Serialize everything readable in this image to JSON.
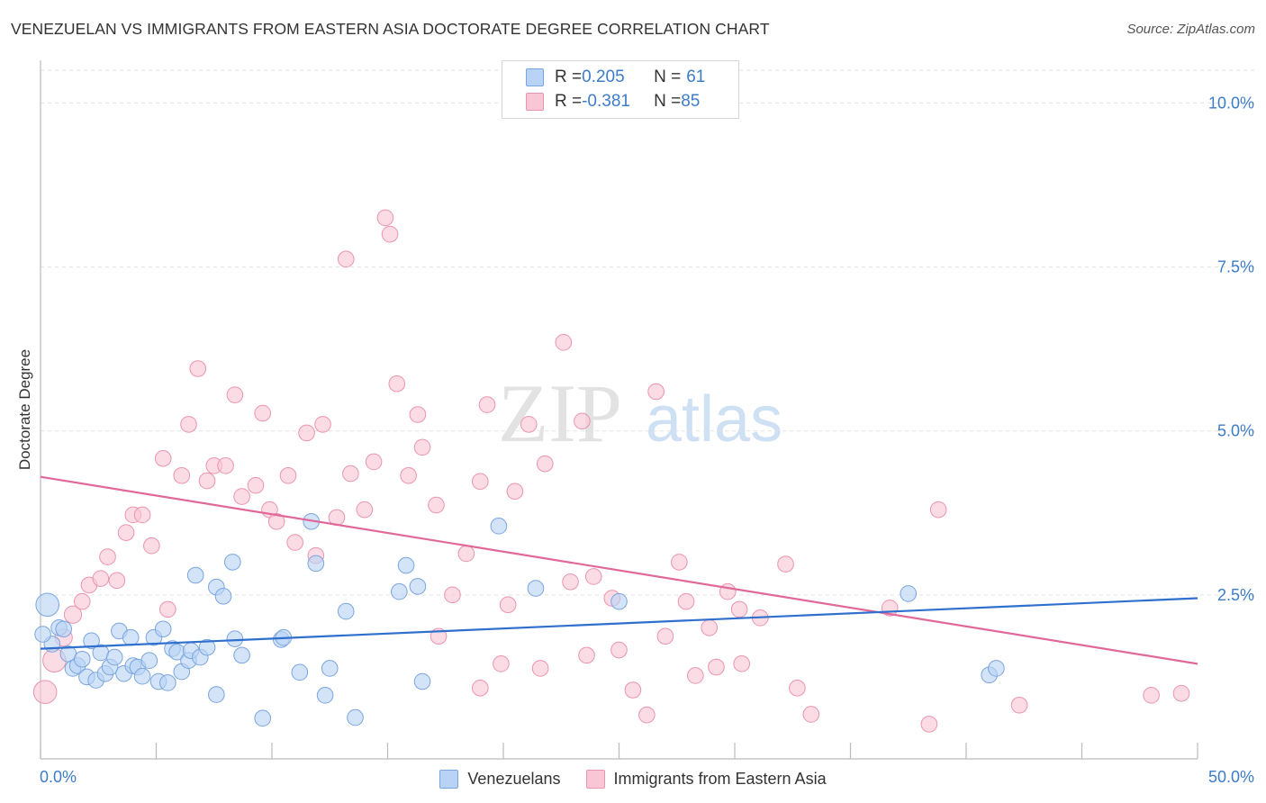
{
  "title": "VENEZUELAN VS IMMIGRANTS FROM EASTERN ASIA DOCTORATE DEGREE CORRELATION CHART",
  "source": "Source: ZipAtlas.com",
  "watermark": {
    "zip": "ZIP",
    "atlas": "atlas"
  },
  "legend": {
    "rows": [
      {
        "r_label": "R = ",
        "r_value": "0.205",
        "n_label": "N = ",
        "n_value": "61"
      },
      {
        "r_label": "R = ",
        "r_value": "-0.381",
        "n_label": "N = ",
        "n_value": "85"
      }
    ]
  },
  "colors": {
    "blue_fill": "#b8d3f5",
    "blue_stroke": "#7aa5de",
    "blue_line": "#2f6fce",
    "pink_fill": "#f8c6d5",
    "pink_stroke": "#eb94b0",
    "pink_line": "#e0689a",
    "tick_label": "#3d7cc9",
    "grid": "#e2e2e2"
  },
  "chart_data": {
    "type": "scatter",
    "title": "VENEZUELAN VS IMMIGRANTS FROM EASTERN ASIA DOCTORATE DEGREE CORRELATION CHART",
    "xlabel": "",
    "ylabel": "Doctorate Degree",
    "xlim": [
      0,
      50
    ],
    "ylim": [
      0,
      10.5
    ],
    "x_tick_labels": [
      "0.0%",
      "50.0%"
    ],
    "y_ticks": [
      2.5,
      5.0,
      7.5,
      10.0
    ],
    "y_tick_labels": [
      "2.5%",
      "5.0%",
      "7.5%",
      "10.0%"
    ],
    "grid": "horizontal dashed",
    "legend_position": "top-center and bottom",
    "series": [
      {
        "name": "Venezuelans",
        "r": 0.205,
        "n": 61,
        "trend": {
          "x": [
            0,
            50
          ],
          "y": [
            1.68,
            2.45
          ]
        },
        "points": [
          {
            "x": 0.3,
            "y": 2.35,
            "s": 16
          },
          {
            "x": 0.5,
            "y": 1.75,
            "s": 11
          },
          {
            "x": 0.8,
            "y": 2.0,
            "s": 11
          },
          {
            "x": 1.0,
            "y": 1.98,
            "s": 11
          },
          {
            "x": 1.2,
            "y": 1.6,
            "s": 11
          },
          {
            "x": 1.4,
            "y": 1.38,
            "s": 11
          },
          {
            "x": 1.6,
            "y": 1.42,
            "s": 11
          },
          {
            "x": 1.8,
            "y": 1.52,
            "s": 11
          },
          {
            "x": 2.0,
            "y": 1.25,
            "s": 11
          },
          {
            "x": 2.2,
            "y": 1.8,
            "s": 11
          },
          {
            "x": 2.4,
            "y": 1.2,
            "s": 11
          },
          {
            "x": 2.6,
            "y": 1.62,
            "s": 11
          },
          {
            "x": 2.8,
            "y": 1.3,
            "s": 11
          },
          {
            "x": 3.0,
            "y": 1.4,
            "s": 11
          },
          {
            "x": 3.2,
            "y": 1.55,
            "s": 11
          },
          {
            "x": 3.4,
            "y": 1.95,
            "s": 11
          },
          {
            "x": 3.6,
            "y": 1.3,
            "s": 11
          },
          {
            "x": 3.9,
            "y": 1.85,
            "s": 11
          },
          {
            "x": 4.0,
            "y": 1.42,
            "s": 11
          },
          {
            "x": 4.2,
            "y": 1.4,
            "s": 11
          },
          {
            "x": 4.4,
            "y": 1.26,
            "s": 11
          },
          {
            "x": 4.7,
            "y": 1.5,
            "s": 11
          },
          {
            "x": 4.9,
            "y": 1.85,
            "s": 11
          },
          {
            "x": 5.1,
            "y": 1.18,
            "s": 11
          },
          {
            "x": 5.3,
            "y": 1.98,
            "s": 11
          },
          {
            "x": 5.5,
            "y": 1.16,
            "s": 11
          },
          {
            "x": 5.7,
            "y": 1.68,
            "s": 11
          },
          {
            "x": 5.9,
            "y": 1.63,
            "s": 11
          },
          {
            "x": 6.1,
            "y": 1.33,
            "s": 11
          },
          {
            "x": 6.4,
            "y": 1.5,
            "s": 11
          },
          {
            "x": 6.5,
            "y": 1.65,
            "s": 11
          },
          {
            "x": 6.7,
            "y": 2.8,
            "s": 11
          },
          {
            "x": 6.9,
            "y": 1.55,
            "s": 11
          },
          {
            "x": 7.2,
            "y": 1.7,
            "s": 11
          },
          {
            "x": 7.6,
            "y": 2.62,
            "s": 11
          },
          {
            "x": 7.6,
            "y": 0.98,
            "s": 11
          },
          {
            "x": 7.9,
            "y": 2.48,
            "s": 11
          },
          {
            "x": 8.3,
            "y": 3.0,
            "s": 11
          },
          {
            "x": 8.4,
            "y": 1.83,
            "s": 11
          },
          {
            "x": 8.7,
            "y": 1.58,
            "s": 11
          },
          {
            "x": 9.6,
            "y": 0.62,
            "s": 11
          },
          {
            "x": 10.4,
            "y": 1.82,
            "s": 11
          },
          {
            "x": 10.5,
            "y": 1.85,
            "s": 11
          },
          {
            "x": 11.2,
            "y": 1.32,
            "s": 11
          },
          {
            "x": 11.7,
            "y": 3.62,
            "s": 11
          },
          {
            "x": 11.9,
            "y": 2.98,
            "s": 11
          },
          {
            "x": 12.3,
            "y": 0.97,
            "s": 11
          },
          {
            "x": 12.5,
            "y": 1.38,
            "s": 11
          },
          {
            "x": 13.2,
            "y": 2.25,
            "s": 11
          },
          {
            "x": 13.6,
            "y": 0.63,
            "s": 11
          },
          {
            "x": 15.5,
            "y": 2.55,
            "s": 11
          },
          {
            "x": 15.8,
            "y": 2.95,
            "s": 11
          },
          {
            "x": 16.3,
            "y": 2.63,
            "s": 11
          },
          {
            "x": 16.5,
            "y": 1.18,
            "s": 11
          },
          {
            "x": 19.8,
            "y": 3.55,
            "s": 11
          },
          {
            "x": 21.4,
            "y": 2.6,
            "s": 11
          },
          {
            "x": 25.0,
            "y": 2.4,
            "s": 11
          },
          {
            "x": 37.5,
            "y": 2.52,
            "s": 11
          },
          {
            "x": 41.0,
            "y": 1.28,
            "s": 11
          },
          {
            "x": 41.3,
            "y": 1.38,
            "s": 11
          },
          {
            "x": 0.1,
            "y": 1.9,
            "s": 11
          }
        ]
      },
      {
        "name": "Immigrants from Eastern Asia",
        "r": -0.381,
        "n": 85,
        "trend": {
          "x": [
            0,
            50
          ],
          "y": [
            4.3,
            1.45
          ]
        },
        "points": [
          {
            "x": 0.2,
            "y": 1.02,
            "s": 16
          },
          {
            "x": 0.6,
            "y": 1.5,
            "s": 16
          },
          {
            "x": 1.0,
            "y": 1.85,
            "s": 12
          },
          {
            "x": 1.4,
            "y": 2.2,
            "s": 12
          },
          {
            "x": 1.8,
            "y": 2.4,
            "s": 11
          },
          {
            "x": 2.1,
            "y": 2.65,
            "s": 11
          },
          {
            "x": 2.6,
            "y": 2.75,
            "s": 11
          },
          {
            "x": 2.9,
            "y": 3.08,
            "s": 11
          },
          {
            "x": 3.3,
            "y": 2.72,
            "s": 11
          },
          {
            "x": 3.7,
            "y": 3.45,
            "s": 11
          },
          {
            "x": 4.0,
            "y": 3.72,
            "s": 11
          },
          {
            "x": 4.4,
            "y": 3.72,
            "s": 11
          },
          {
            "x": 4.8,
            "y": 3.25,
            "s": 11
          },
          {
            "x": 5.3,
            "y": 4.58,
            "s": 11
          },
          {
            "x": 5.5,
            "y": 2.28,
            "s": 11
          },
          {
            "x": 6.1,
            "y": 4.32,
            "s": 11
          },
          {
            "x": 6.4,
            "y": 5.1,
            "s": 11
          },
          {
            "x": 6.8,
            "y": 5.95,
            "s": 11
          },
          {
            "x": 7.2,
            "y": 4.24,
            "s": 11
          },
          {
            "x": 7.5,
            "y": 4.47,
            "s": 11
          },
          {
            "x": 8.0,
            "y": 4.47,
            "s": 11
          },
          {
            "x": 8.4,
            "y": 5.55,
            "s": 11
          },
          {
            "x": 8.7,
            "y": 4.0,
            "s": 11
          },
          {
            "x": 9.3,
            "y": 4.17,
            "s": 11
          },
          {
            "x": 9.6,
            "y": 5.27,
            "s": 11
          },
          {
            "x": 9.9,
            "y": 3.8,
            "s": 11
          },
          {
            "x": 10.2,
            "y": 3.62,
            "s": 11
          },
          {
            "x": 10.7,
            "y": 4.32,
            "s": 11
          },
          {
            "x": 11.0,
            "y": 3.3,
            "s": 11
          },
          {
            "x": 11.5,
            "y": 4.97,
            "s": 11
          },
          {
            "x": 11.9,
            "y": 3.1,
            "s": 11
          },
          {
            "x": 12.2,
            "y": 5.1,
            "s": 11
          },
          {
            "x": 12.8,
            "y": 3.68,
            "s": 11
          },
          {
            "x": 13.2,
            "y": 7.62,
            "s": 11
          },
          {
            "x": 13.4,
            "y": 4.35,
            "s": 11
          },
          {
            "x": 14.0,
            "y": 3.8,
            "s": 11
          },
          {
            "x": 14.4,
            "y": 4.53,
            "s": 11
          },
          {
            "x": 14.9,
            "y": 8.25,
            "s": 11
          },
          {
            "x": 15.1,
            "y": 8.0,
            "s": 11
          },
          {
            "x": 15.4,
            "y": 5.72,
            "s": 11
          },
          {
            "x": 15.9,
            "y": 4.32,
            "s": 11
          },
          {
            "x": 16.3,
            "y": 5.25,
            "s": 11
          },
          {
            "x": 16.5,
            "y": 4.75,
            "s": 11
          },
          {
            "x": 17.1,
            "y": 3.87,
            "s": 11
          },
          {
            "x": 17.2,
            "y": 1.87,
            "s": 11
          },
          {
            "x": 17.8,
            "y": 2.5,
            "s": 11
          },
          {
            "x": 18.4,
            "y": 3.13,
            "s": 11
          },
          {
            "x": 19.0,
            "y": 4.23,
            "s": 11
          },
          {
            "x": 19.0,
            "y": 1.08,
            "s": 11
          },
          {
            "x": 19.3,
            "y": 5.4,
            "s": 11
          },
          {
            "x": 19.9,
            "y": 1.45,
            "s": 11
          },
          {
            "x": 20.2,
            "y": 2.35,
            "s": 11
          },
          {
            "x": 20.5,
            "y": 4.08,
            "s": 11
          },
          {
            "x": 21.1,
            "y": 5.1,
            "s": 11
          },
          {
            "x": 21.6,
            "y": 1.38,
            "s": 11
          },
          {
            "x": 21.8,
            "y": 4.5,
            "s": 11
          },
          {
            "x": 22.6,
            "y": 6.35,
            "s": 11
          },
          {
            "x": 22.9,
            "y": 2.7,
            "s": 11
          },
          {
            "x": 23.4,
            "y": 5.15,
            "s": 11
          },
          {
            "x": 23.6,
            "y": 1.58,
            "s": 11
          },
          {
            "x": 23.9,
            "y": 2.78,
            "s": 11
          },
          {
            "x": 24.7,
            "y": 2.45,
            "s": 11
          },
          {
            "x": 25.0,
            "y": 1.66,
            "s": 11
          },
          {
            "x": 25.6,
            "y": 1.05,
            "s": 11
          },
          {
            "x": 26.2,
            "y": 0.67,
            "s": 11
          },
          {
            "x": 26.6,
            "y": 5.6,
            "s": 11
          },
          {
            "x": 27.0,
            "y": 1.87,
            "s": 11
          },
          {
            "x": 27.6,
            "y": 3.0,
            "s": 11
          },
          {
            "x": 27.9,
            "y": 2.4,
            "s": 11
          },
          {
            "x": 28.3,
            "y": 1.27,
            "s": 11
          },
          {
            "x": 28.9,
            "y": 2.0,
            "s": 11
          },
          {
            "x": 29.2,
            "y": 1.4,
            "s": 11
          },
          {
            "x": 29.7,
            "y": 2.55,
            "s": 11
          },
          {
            "x": 30.2,
            "y": 2.28,
            "s": 11
          },
          {
            "x": 30.3,
            "y": 1.45,
            "s": 11
          },
          {
            "x": 31.1,
            "y": 2.15,
            "s": 11
          },
          {
            "x": 32.2,
            "y": 2.97,
            "s": 11
          },
          {
            "x": 32.7,
            "y": 1.08,
            "s": 11
          },
          {
            "x": 33.3,
            "y": 0.68,
            "s": 11
          },
          {
            "x": 36.7,
            "y": 2.3,
            "s": 11
          },
          {
            "x": 38.4,
            "y": 0.53,
            "s": 11
          },
          {
            "x": 38.8,
            "y": 3.8,
            "s": 11
          },
          {
            "x": 42.3,
            "y": 0.82,
            "s": 11
          },
          {
            "x": 48.0,
            "y": 0.97,
            "s": 11
          },
          {
            "x": 49.3,
            "y": 1.0,
            "s": 11
          }
        ]
      }
    ]
  }
}
